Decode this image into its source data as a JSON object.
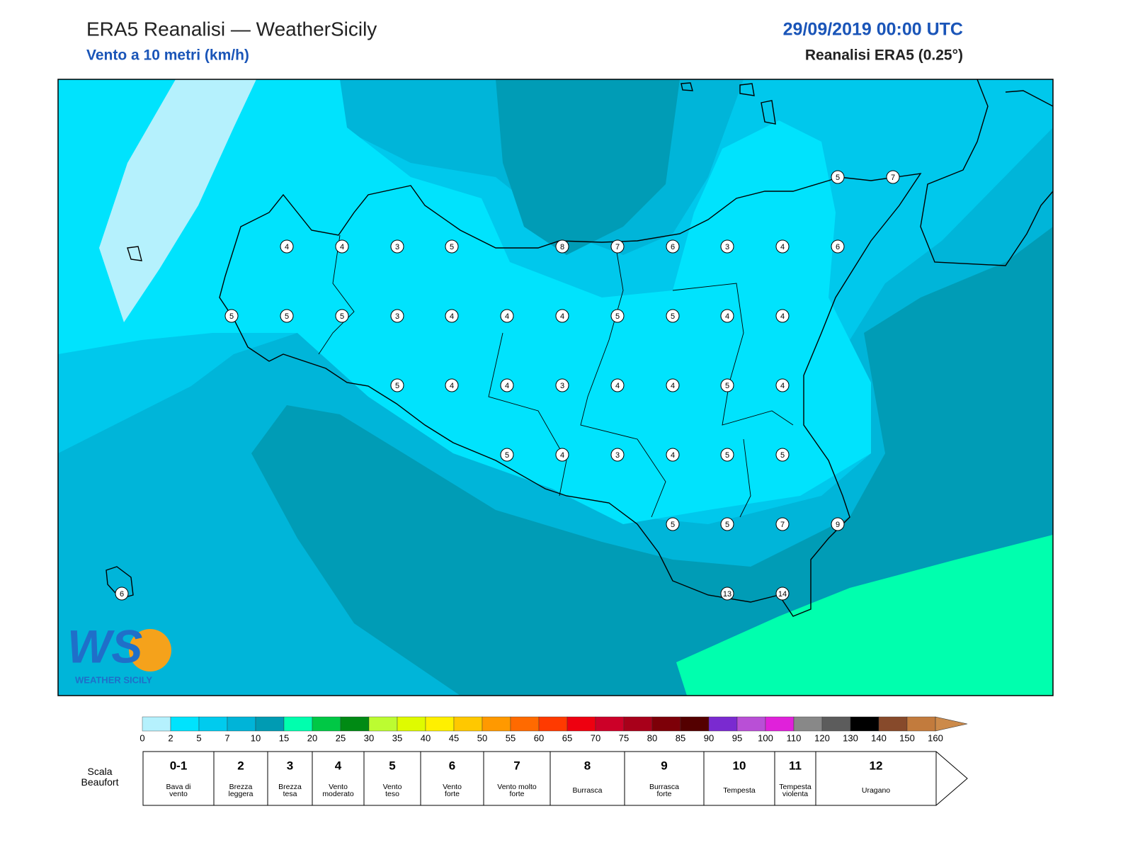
{
  "header": {
    "title": "ERA5 Reanalisi — WeatherSicily",
    "subtitle": "Vento a 10 metri (km/h)",
    "date": "29/09/2019 00:00 UTC",
    "source": "Reanalisi ERA5 (0.25°)"
  },
  "stations": [
    4,
    4,
    3,
    5,
    8,
    7,
    6,
    3,
    4,
    6,
    5,
    7,
    5,
    5,
    5,
    3,
    4,
    4,
    4,
    5,
    5,
    4,
    4,
    5,
    4,
    4,
    3,
    4,
    4,
    5,
    4,
    5,
    4,
    3,
    4,
    5,
    5,
    5,
    5,
    7,
    9,
    13,
    14,
    6
  ],
  "logo": {
    "mark": "WS",
    "name": "WEATHER SICILY"
  },
  "colorbar": {
    "levels": [
      0,
      2,
      5,
      7,
      10,
      15,
      20,
      25,
      30,
      35,
      40,
      45,
      50,
      55,
      60,
      65,
      70,
      75,
      80,
      85,
      90,
      95,
      100,
      110,
      120,
      130,
      140,
      150,
      160
    ],
    "colors": [
      "#b5f1fd",
      "#00e3fd",
      "#00cbee",
      "#00b4d8",
      "#009bb3",
      "#00ffae",
      "#00c845",
      "#008a14",
      "#bcfc31",
      "#dffb00",
      "#fff000",
      "#ffc800",
      "#ff9900",
      "#ff6a00",
      "#ff3a00",
      "#ee0010",
      "#cc0028",
      "#a8001a",
      "#7d0008",
      "#540000",
      "#7a2ad0",
      "#b94fd6",
      "#e021da",
      "#888888",
      "#5c5c5c",
      "#000000",
      "#874a2b",
      "#c27b3d",
      "#cc8a4a"
    ]
  },
  "beaufort": {
    "label": "Scala Beaufort",
    "items": [
      {
        "force": "0-1",
        "name": "Bava di vento"
      },
      {
        "force": "2",
        "name": "Brezza leggera"
      },
      {
        "force": "3",
        "name": "Brezza tesa"
      },
      {
        "force": "4",
        "name": "Vento moderato"
      },
      {
        "force": "5",
        "name": "Vento teso"
      },
      {
        "force": "6",
        "name": "Vento forte"
      },
      {
        "force": "7",
        "name": "Vento molto forte"
      },
      {
        "force": "8",
        "name": "Burrasca"
      },
      {
        "force": "9",
        "name": "Burrasca forte"
      },
      {
        "force": "10",
        "name": "Tempesta"
      },
      {
        "force": "11",
        "name": "Tempesta violenta"
      },
      {
        "force": "12",
        "name": "Uragano"
      }
    ]
  }
}
